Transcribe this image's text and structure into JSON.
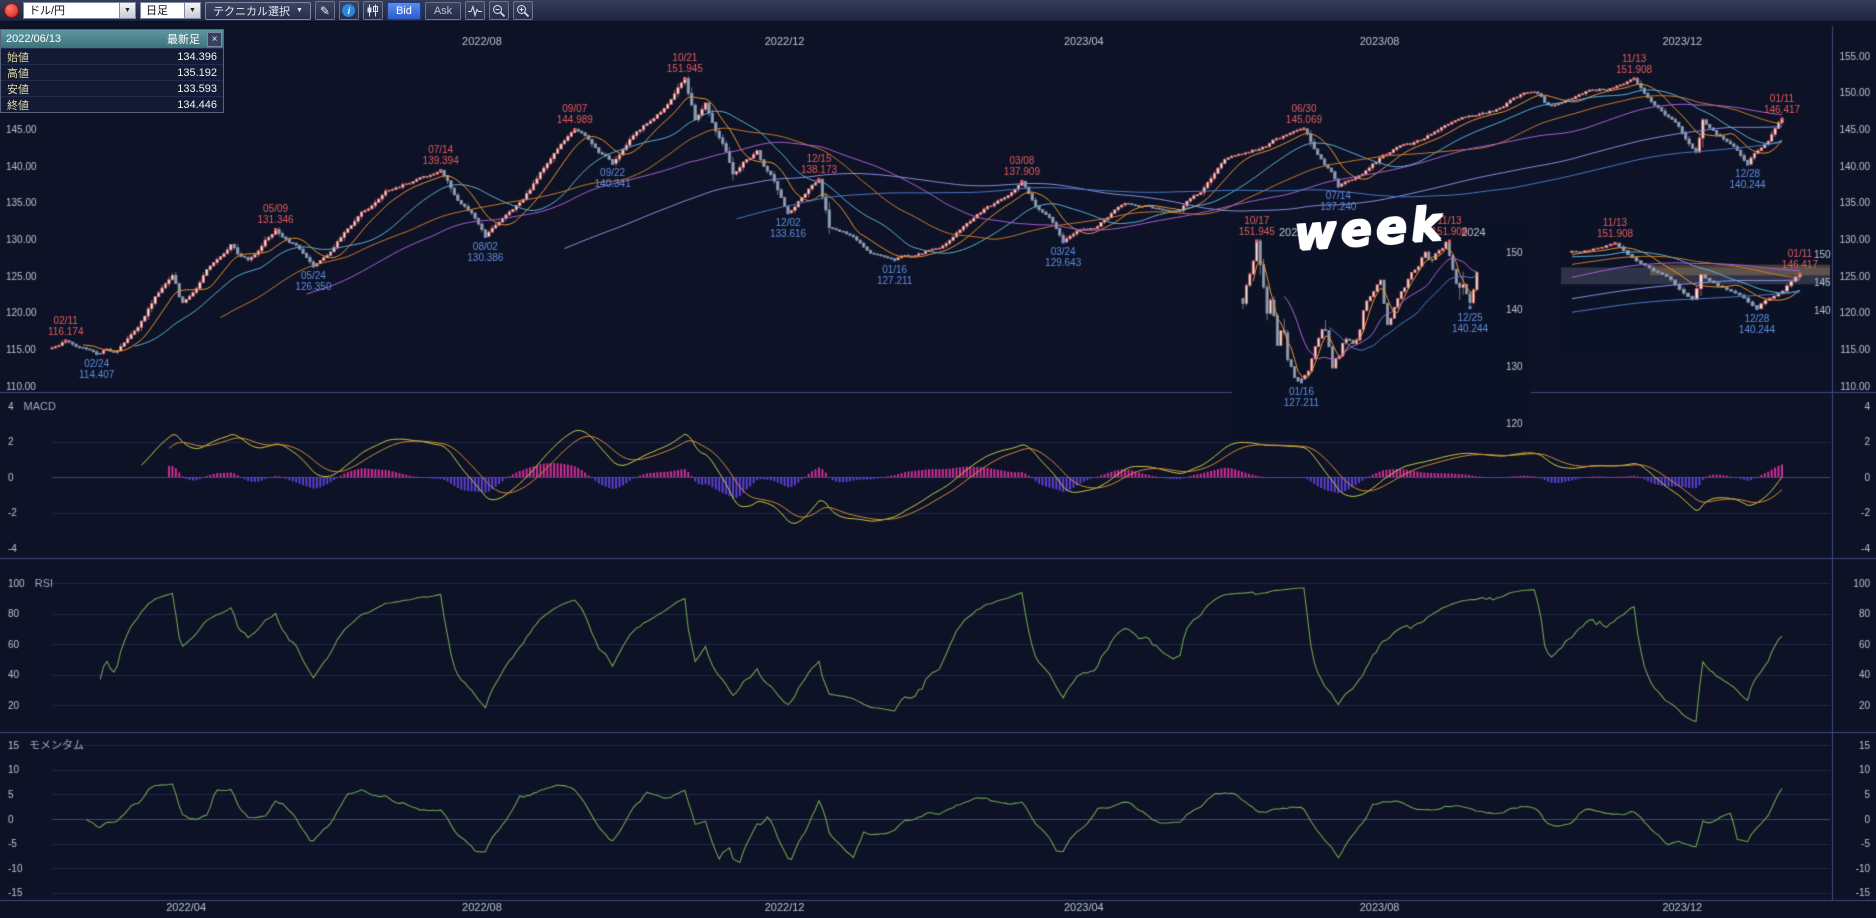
{
  "toolbar": {
    "pair_value": "ドル/円",
    "timeframe_value": "日足",
    "technical_button": "テクニカル選択",
    "bid": "Bid",
    "ask": "Ask",
    "caret": "▼",
    "icons": {
      "pencil": "✎",
      "info": "i"
    }
  },
  "info_panel": {
    "date": "2022/06/13",
    "tag": "最新足",
    "close_glyph": "×",
    "rows": [
      {
        "label": "始値",
        "value": "134.396"
      },
      {
        "label": "高値",
        "value": "135.192"
      },
      {
        "label": "安値",
        "value": "133.593"
      },
      {
        "label": "終値",
        "value": "134.446"
      }
    ]
  },
  "annotation_week": "week",
  "colors": {
    "background": "#0d1226",
    "panel_line": "#3c4a78",
    "axis_text": "#b9c1d2",
    "grid": "#1e2847",
    "zero_line": "#3a477a",
    "inset_bg": "#0c1226",
    "candle_up_fill": "#efe9e6",
    "candle_up_stroke": "#d26b6b",
    "candle_down_fill": "#93a2b4",
    "candle_down_stroke": "#7e8ca0",
    "ma": [
      "#e8932c",
      "#5bb0d8",
      "#c87a28",
      "#a85fd6",
      "#8a90e0",
      "#4a78c8"
    ],
    "macd_line": "#c8c93e",
    "macd_signal": "#d28a35",
    "macd_pos": "#cc2d96",
    "macd_neg": "#5a3fd0",
    "oscillator": "#6f9f50",
    "ann_high": "#e25c5c",
    "ann_low": "#5f8ce0"
  },
  "chart_data": [
    {
      "id": "main",
      "type": "candlestick",
      "pair": "ドル/円",
      "timeframe": "日足",
      "start_date": "2022/02/07",
      "end_date": "2024/01/11",
      "ylim": [
        110,
        155
      ],
      "yticks": [
        110,
        115,
        120,
        125,
        130,
        135,
        140,
        145,
        150,
        155
      ],
      "x_axis_top": [
        "2022/08",
        "2022/12",
        "2023/04",
        "2023/08",
        "2023/12"
      ],
      "x_axis_bottom": [
        "2022/04",
        "2022/08",
        "2022/12",
        "2023/04",
        "2023/08",
        "2023/12"
      ],
      "waypoints": [
        {
          "date": "2022/02/07",
          "price": 115.2
        },
        {
          "date": "2022/02/11",
          "price": 116.174,
          "label": "02/11",
          "side": "high"
        },
        {
          "date": "2022/02/24",
          "price": 114.407,
          "label": "02/24",
          "side": "low"
        },
        {
          "date": "2022/03/04",
          "price": 114.8
        },
        {
          "date": "2022/03/28",
          "price": 125.1
        },
        {
          "date": "2022/03/31",
          "price": 121.4
        },
        {
          "date": "2022/04/20",
          "price": 129.3
        },
        {
          "date": "2022/04/27",
          "price": 127.2
        },
        {
          "date": "2022/05/09",
          "price": 131.346,
          "label": "05/09",
          "side": "high"
        },
        {
          "date": "2022/05/24",
          "price": 126.35,
          "label": "05/24",
          "side": "low"
        },
        {
          "date": "2022/06/22",
          "price": 136.6
        },
        {
          "date": "2022/07/14",
          "price": 139.394,
          "label": "07/14",
          "side": "high"
        },
        {
          "date": "2022/08/02",
          "price": 130.386,
          "label": "08/02",
          "side": "low"
        },
        {
          "date": "2022/09/07",
          "price": 144.989,
          "label": "09/07",
          "side": "high"
        },
        {
          "date": "2022/09/22",
          "price": 140.341,
          "label": "09/22",
          "side": "low"
        },
        {
          "date": "2022/10/21",
          "price": 151.945,
          "label": "10/21",
          "side": "high"
        },
        {
          "date": "2022/10/26",
          "price": 146.3
        },
        {
          "date": "2022/10/31",
          "price": 148.6
        },
        {
          "date": "2022/11/10",
          "price": 138.9
        },
        {
          "date": "2022/11/21",
          "price": 142.1
        },
        {
          "date": "2022/12/02",
          "price": 133.616,
          "label": "12/02",
          "side": "low"
        },
        {
          "date": "2022/12/15",
          "price": 138.173,
          "label": "12/15",
          "side": "high"
        },
        {
          "date": "2022/12/20",
          "price": 131.6
        },
        {
          "date": "2023/01/16",
          "price": 127.211,
          "label": "01/16",
          "side": "low"
        },
        {
          "date": "2023/02/02",
          "price": 128.8
        },
        {
          "date": "2023/03/08",
          "price": 137.909,
          "label": "03/08",
          "side": "high"
        },
        {
          "date": "2023/03/24",
          "price": 129.643,
          "label": "03/24",
          "side": "low"
        },
        {
          "date": "2023/04/19",
          "price": 134.9
        },
        {
          "date": "2023/05/11",
          "price": 133.9
        },
        {
          "date": "2023/05/30",
          "price": 140.9
        },
        {
          "date": "2023/06/30",
          "price": 145.069,
          "label": "06/30",
          "side": "high"
        },
        {
          "date": "2023/07/14",
          "price": 137.24,
          "label": "07/14",
          "side": "low"
        },
        {
          "date": "2023/08/31",
          "price": 146.2
        },
        {
          "date": "2023/10/03",
          "price": 150.1
        },
        {
          "date": "2023/10/10",
          "price": 148.2
        },
        {
          "date": "2023/11/13",
          "price": 151.908,
          "label": "11/13",
          "side": "high"
        },
        {
          "date": "2023/12/07",
          "price": 141.9
        },
        {
          "date": "2023/12/11",
          "price": 146.3
        },
        {
          "date": "2023/12/28",
          "price": 140.244,
          "label": "12/28",
          "side": "low"
        },
        {
          "date": "2024/01/11",
          "price": 146.417,
          "label": "01/11",
          "side": "high"
        }
      ]
    },
    {
      "id": "macd",
      "type": "line+histogram",
      "title": "MACD",
      "ylim": [
        -4,
        4
      ],
      "yticks": [
        -4,
        -2,
        0,
        2,
        4
      ],
      "derived_from": "main"
    },
    {
      "id": "rsi",
      "type": "line",
      "title": "RSI",
      "yticks": [
        20,
        40,
        60,
        80,
        100
      ],
      "derived_from": "main"
    },
    {
      "id": "momentum",
      "type": "line",
      "title": "モメンタム",
      "yticks": [
        -15,
        -10,
        -5,
        0,
        5,
        10,
        15
      ],
      "derived_from": "main"
    },
    {
      "id": "inset-week",
      "type": "candlestick",
      "annotation": "week",
      "start_date": "2022/09/19",
      "end_date": "2024/01/08",
      "x_labels": [
        "2023",
        "2024"
      ],
      "yticks": [
        120,
        130,
        140,
        150
      ],
      "annotations": [
        {
          "date": "2022/10/17",
          "price": 151.945,
          "label": "10/17",
          "side": "high"
        },
        {
          "date": "2023/01/16",
          "price": 127.211,
          "label": "01/16",
          "side": "low"
        },
        {
          "date": "2023/11/13",
          "price": 151.908,
          "label": "11/13",
          "side": "high"
        },
        {
          "date": "2023/12/25",
          "price": 140.244,
          "label": "12/25",
          "side": "low"
        }
      ]
    },
    {
      "id": "inset-zoom",
      "type": "candlestick",
      "start_date": "2023/10/30",
      "end_date": "2024/01/11",
      "yticks": [
        140,
        145,
        150
      ],
      "annotations": [
        {
          "date": "2023/11/13",
          "price": 151.908,
          "label": "11/13",
          "side": "high"
        },
        {
          "date": "2024/01/11",
          "price": 146.417,
          "label": "01/11",
          "side": "high"
        },
        {
          "date": "2023/12/28",
          "price": 140.244,
          "label": "12/28",
          "side": "low"
        }
      ]
    }
  ]
}
